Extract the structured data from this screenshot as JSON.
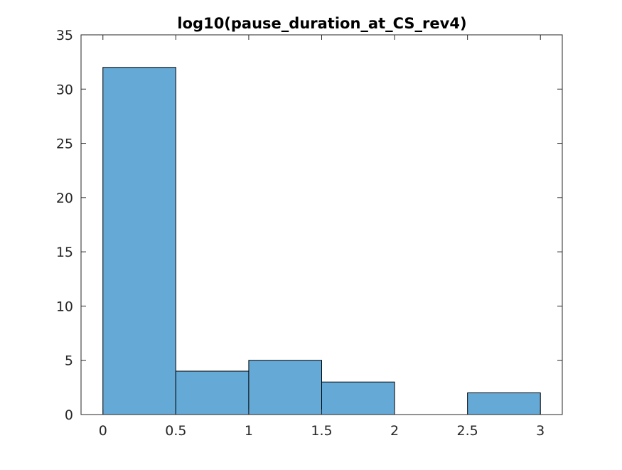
{
  "chart_data": {
    "type": "bar",
    "title": "log10(pause_duration_at_CS_rev4)",
    "xlabel": "",
    "ylabel": "",
    "bins": [
      {
        "x0": 0.0,
        "x1": 0.5,
        "count": 32
      },
      {
        "x0": 0.5,
        "x1": 1.0,
        "count": 4
      },
      {
        "x0": 1.0,
        "x1": 1.5,
        "count": 5
      },
      {
        "x0": 1.5,
        "x1": 2.0,
        "count": 3
      },
      {
        "x0": 2.0,
        "x1": 2.5,
        "count": 0
      },
      {
        "x0": 2.5,
        "x1": 3.0,
        "count": 2
      }
    ],
    "xlim": [
      -0.15,
      3.15
    ],
    "ylim": [
      0,
      35
    ],
    "x_ticks": [
      "0",
      "0.5",
      "1",
      "1.5",
      "2",
      "2.5",
      "3"
    ],
    "x_tick_values": [
      0,
      0.5,
      1,
      1.5,
      2,
      2.5,
      3
    ],
    "y_ticks": [
      "0",
      "5",
      "10",
      "15",
      "20",
      "25",
      "30",
      "35"
    ],
    "y_tick_values": [
      0,
      5,
      10,
      15,
      20,
      25,
      30,
      35
    ],
    "bar_color": "#65a9d7",
    "edge_color": "#000000",
    "grid": false,
    "legend": "none"
  }
}
